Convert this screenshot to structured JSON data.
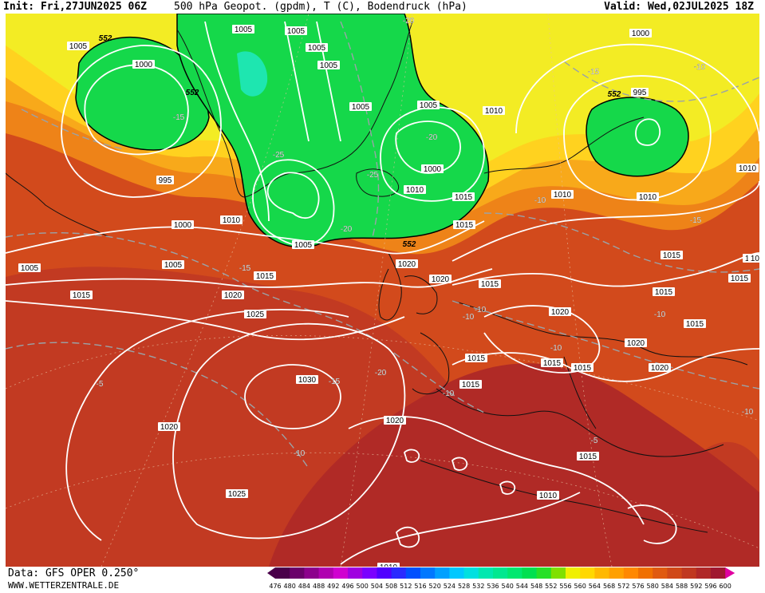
{
  "header": {
    "init": "Init: Fri,27JUN2025 06Z",
    "title": "500 hPa Geopot. (gpdm), T (C), Bodendruck (hPa)",
    "valid": "Valid: Wed,02JUL2025 18Z"
  },
  "footer": {
    "source": "Data: GFS OPER 0.250°",
    "site": "WWW.WETTERZENTRALE.DE"
  },
  "legend": {
    "values": [
      "476",
      "480",
      "484",
      "488",
      "492",
      "496",
      "500",
      "504",
      "508",
      "512",
      "516",
      "520",
      "524",
      "528",
      "532",
      "536",
      "540",
      "544",
      "548",
      "552",
      "556",
      "560",
      "564",
      "568",
      "572",
      "576",
      "580",
      "584",
      "588",
      "592",
      "596",
      "600"
    ],
    "colors": [
      "#4a004a",
      "#6a006a",
      "#8c008c",
      "#b000b0",
      "#d000d0",
      "#a000e0",
      "#7a00ff",
      "#5000ff",
      "#2a2aff",
      "#0050ff",
      "#0078ff",
      "#00a0ff",
      "#00c8ff",
      "#00e0e0",
      "#00e8b0",
      "#00e890",
      "#00e870",
      "#00e050",
      "#28e028",
      "#80e000",
      "#f0f000",
      "#ffd800",
      "#ffb800",
      "#ffa000",
      "#ff8800",
      "#f07000",
      "#e05a10",
      "#d04818",
      "#c03820",
      "#b02828",
      "#a01830",
      "#e000a0"
    ]
  },
  "map": {
    "isobars": [
      "1005",
      "1005",
      "1005",
      "1005",
      "1005",
      "1005",
      "1005",
      "1005",
      "1005",
      "1005",
      "1000",
      "1000",
      "1000",
      "1000",
      "995",
      "995",
      "1010",
      "1010",
      "1010",
      "1010",
      "1010",
      "1010",
      "1010",
      "1010",
      "1015",
      "1015",
      "1015",
      "1015",
      "1015",
      "1015",
      "1015",
      "1015",
      "1015",
      "1015",
      "1015",
      "1015",
      "1015",
      "1015",
      "1015",
      "1015",
      "1020",
      "1020",
      "1020",
      "1020",
      "1020",
      "1020",
      "1020",
      "1020",
      "1025",
      "1025",
      "1030"
    ],
    "isotherms": [
      "-20",
      "-15",
      "-10",
      "-25",
      "-25",
      "-20",
      "-15",
      "-20",
      "-10",
      "-15",
      "-10",
      "-15",
      "-10",
      "-10",
      "-10",
      "-20",
      "-15",
      "-5",
      "-10",
      "-10",
      "-5",
      "-10"
    ],
    "heights": [
      "552",
      "552",
      "552",
      "552"
    ]
  }
}
